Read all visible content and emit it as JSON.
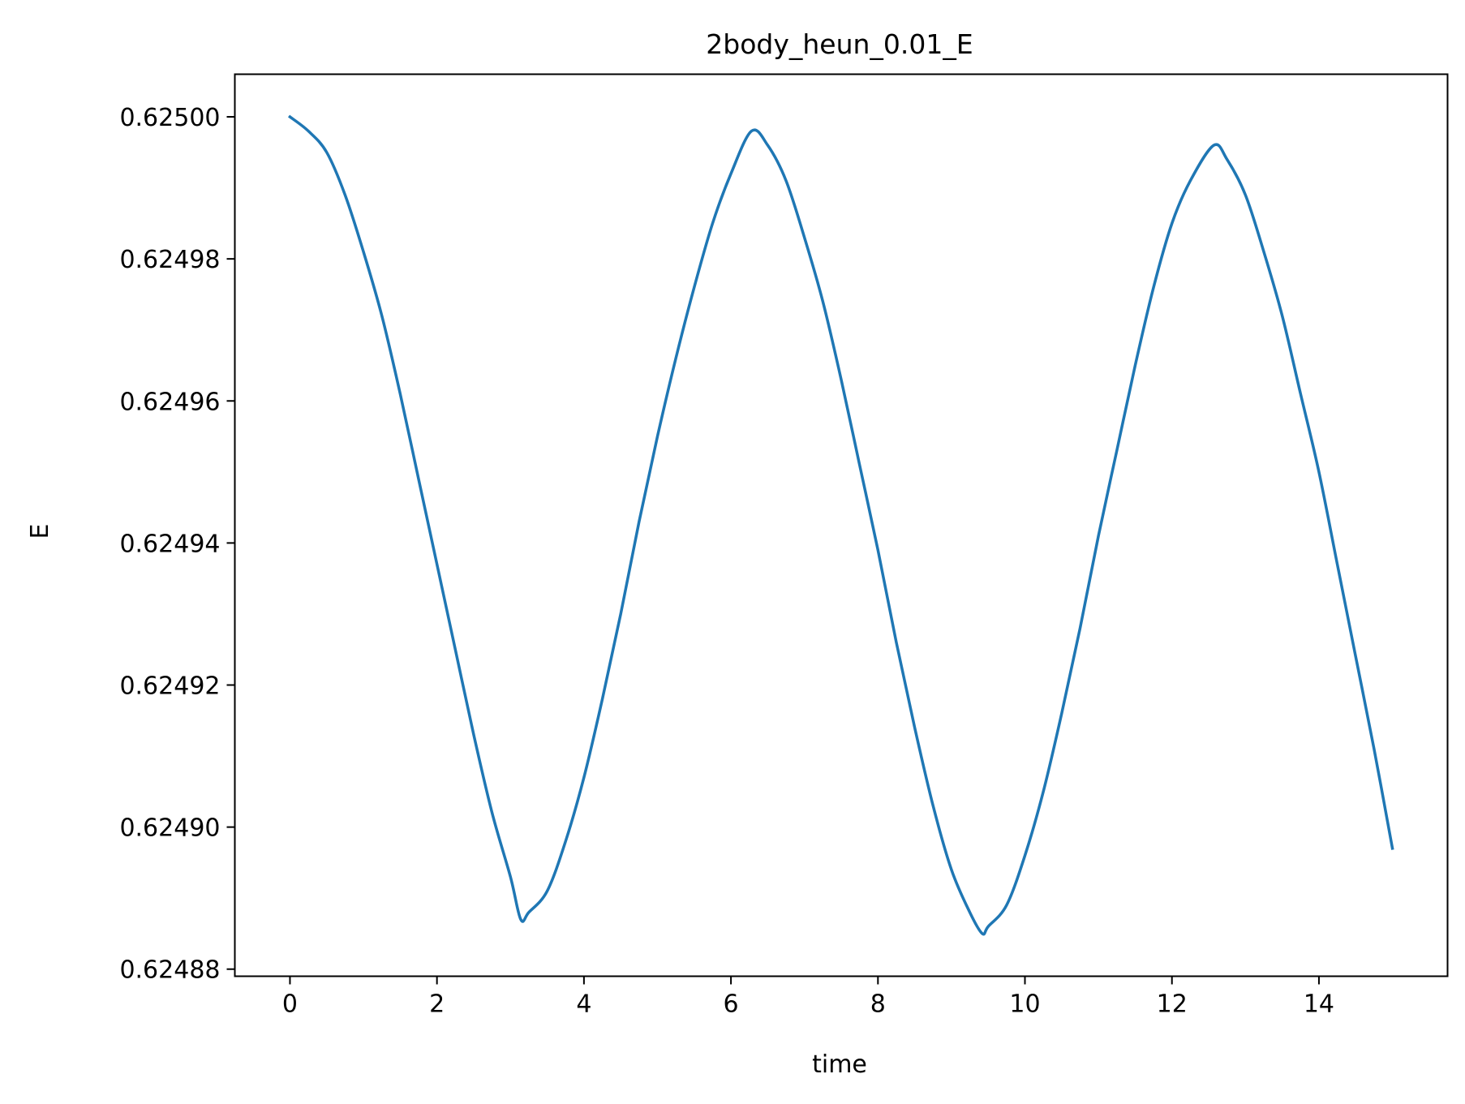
{
  "chart_data": {
    "type": "line",
    "title": "2body_heun_0.01_E",
    "xlabel": "time",
    "ylabel": "E",
    "xlim": [
      -0.75,
      15.75
    ],
    "ylim": [
      0.624879,
      0.625006
    ],
    "x_ticks": [
      0,
      2,
      4,
      6,
      8,
      10,
      12,
      14
    ],
    "x_tick_labels": [
      "0",
      "2",
      "4",
      "6",
      "8",
      "10",
      "12",
      "14"
    ],
    "y_ticks": [
      0.62488,
      0.6249,
      0.62492,
      0.62494,
      0.62496,
      0.62498,
      0.625
    ],
    "y_tick_labels": [
      "0.62488",
      "0.62490",
      "0.62492",
      "0.62494",
      "0.62496",
      "0.62498",
      "0.62500"
    ],
    "grid": false,
    "series": [
      {
        "color": "#1f77b4",
        "x": [
          0,
          0.25,
          0.5,
          0.75,
          1.0,
          1.25,
          1.5,
          1.75,
          2.0,
          2.25,
          2.5,
          2.75,
          3.0,
          3.14,
          3.25,
          3.5,
          3.75,
          4.0,
          4.25,
          4.5,
          4.75,
          5.0,
          5.25,
          5.5,
          5.75,
          6.0,
          6.28,
          6.5,
          6.75,
          7.0,
          7.25,
          7.5,
          7.75,
          8.0,
          8.25,
          8.5,
          8.75,
          9.0,
          9.25,
          9.42,
          9.5,
          9.75,
          10.0,
          10.25,
          10.5,
          10.75,
          11.0,
          11.25,
          11.5,
          11.75,
          12.0,
          12.25,
          12.57,
          12.75,
          13.0,
          13.25,
          13.5,
          13.75,
          14.0,
          14.25,
          14.5,
          14.75,
          15.0
        ],
        "y": [
          0.625,
          0.624998,
          0.624995,
          0.624989,
          0.624981,
          0.624972,
          0.624961,
          0.624949,
          0.624937,
          0.624925,
          0.624913,
          0.624902,
          0.624893,
          0.624887,
          0.624888,
          0.624891,
          0.624898,
          0.624907,
          0.624918,
          0.62493,
          0.624943,
          0.624955,
          0.624966,
          0.624976,
          0.624985,
          0.624992,
          0.624998,
          0.624996,
          0.624991,
          0.624983,
          0.624974,
          0.624963,
          0.624951,
          0.624939,
          0.624926,
          0.624914,
          0.624903,
          0.624894,
          0.624888,
          0.624885,
          0.624886,
          0.624889,
          0.624896,
          0.624905,
          0.624916,
          0.624928,
          0.624941,
          0.624953,
          0.624965,
          0.624976,
          0.624985,
          0.624991,
          0.624996,
          0.624994,
          0.624989,
          0.624981,
          0.624972,
          0.624961,
          0.62495,
          0.624937,
          0.624924,
          0.624911,
          0.624897
        ]
      }
    ]
  }
}
